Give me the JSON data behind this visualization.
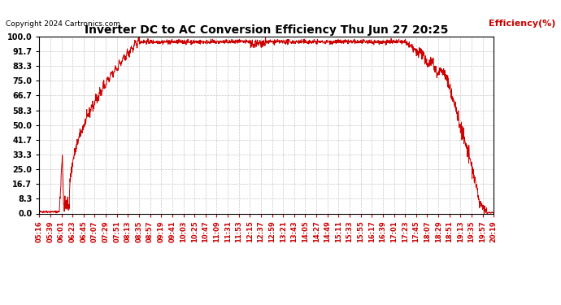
{
  "title": "Inverter DC to AC Conversion Efficiency Thu Jun 27 20:25",
  "ylabel": "Efficiency(%)",
  "copyright": "Copyright 2024 Cartronics.com",
  "bg_color": "#ffffff",
  "grid_color": "#c8c8c8",
  "line_color": "#cc0000",
  "ylabel_color": "#cc0000",
  "xlabel_color": "#cc0000",
  "title_color": "#000000",
  "yticks": [
    0.0,
    8.3,
    16.7,
    25.0,
    33.3,
    41.7,
    50.0,
    58.3,
    66.7,
    75.0,
    83.3,
    91.7,
    100.0
  ],
  "ylim": [
    0,
    100
  ],
  "xtick_labels": [
    "05:16",
    "05:39",
    "06:01",
    "06:23",
    "06:45",
    "07:07",
    "07:29",
    "07:51",
    "08:13",
    "08:35",
    "08:57",
    "09:19",
    "09:41",
    "10:03",
    "10:25",
    "10:47",
    "11:09",
    "11:31",
    "11:53",
    "12:15",
    "12:37",
    "12:59",
    "13:21",
    "13:43",
    "14:05",
    "14:27",
    "14:49",
    "15:11",
    "15:33",
    "15:55",
    "16:17",
    "16:39",
    "17:01",
    "17:23",
    "17:45",
    "18:07",
    "18:29",
    "18:51",
    "19:13",
    "19:35",
    "19:57",
    "20:19"
  ],
  "figsize": [
    6.9,
    3.75
  ],
  "dpi": 100
}
